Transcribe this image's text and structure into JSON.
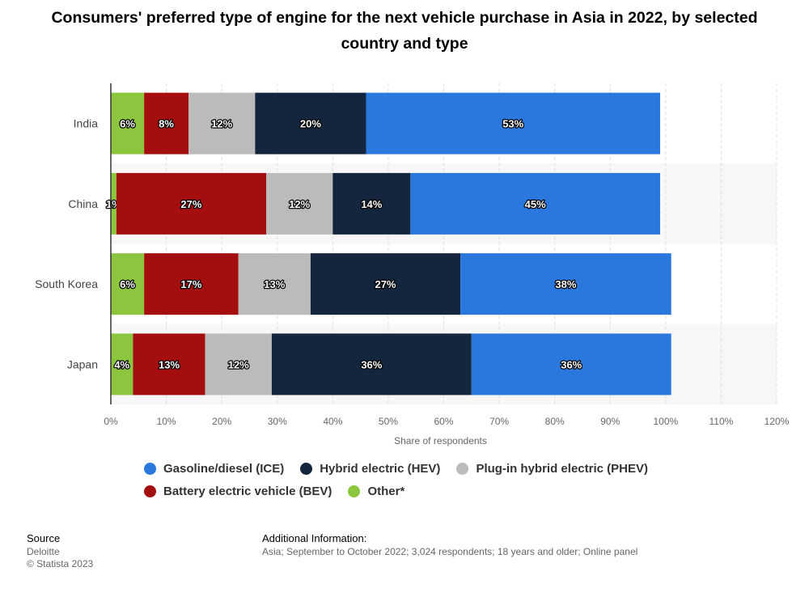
{
  "title": "Consumers' preferred type of engine for the next vehicle purchase in Asia in 2022, by selected country and type",
  "chart_data": {
    "type": "bar",
    "orientation": "horizontal",
    "stacked": true,
    "title": "Consumers' preferred type of engine for the next vehicle purchase in Asia in 2022, by selected country and type",
    "xlabel": "Share of respondents",
    "ylabel": "",
    "xlim": [
      0,
      120
    ],
    "xticks": [
      0,
      10,
      20,
      30,
      40,
      50,
      60,
      70,
      80,
      90,
      100,
      110,
      120
    ],
    "tick_suffix": "%",
    "categories": [
      "India",
      "China",
      "South Korea",
      "Japan"
    ],
    "series": [
      {
        "name": "Other*",
        "color": "#8cc63f",
        "values": [
          6,
          1,
          6,
          4
        ]
      },
      {
        "name": "Battery electric vehicle (BEV)",
        "color": "#a50e0e",
        "values": [
          8,
          27,
          17,
          13
        ]
      },
      {
        "name": "Plug-in hybrid electric (PHEV)",
        "color": "#bbbbbb",
        "values": [
          12,
          12,
          13,
          12
        ]
      },
      {
        "name": "Hybrid electric (HEV)",
        "color": "#13263e",
        "values": [
          20,
          14,
          27,
          36
        ]
      },
      {
        "name": "Gasoline/diesel (ICE)",
        "color": "#2a78dd",
        "values": [
          53,
          45,
          38,
          36
        ]
      }
    ],
    "legend_position": "bottom"
  },
  "legend": {
    "rows": [
      [
        {
          "label": "Gasoline/diesel (ICE)",
          "color": "#2a78dd"
        },
        {
          "label": "Hybrid electric (HEV)",
          "color": "#13263e"
        },
        {
          "label": "Plug-in hybrid electric (PHEV)",
          "color": "#bbbbbb"
        }
      ],
      [
        {
          "label": "Battery electric vehicle (BEV)",
          "color": "#a50e0e"
        },
        {
          "label": "Other*",
          "color": "#8cc63f"
        }
      ]
    ]
  },
  "source": {
    "heading": "Source",
    "lines": [
      "Deloitte",
      "© Statista 2023"
    ]
  },
  "additional_info": {
    "heading": "Additional Information:",
    "text": "Asia; September to October 2022; 3,024 respondents; 18 years and older; Online panel"
  }
}
